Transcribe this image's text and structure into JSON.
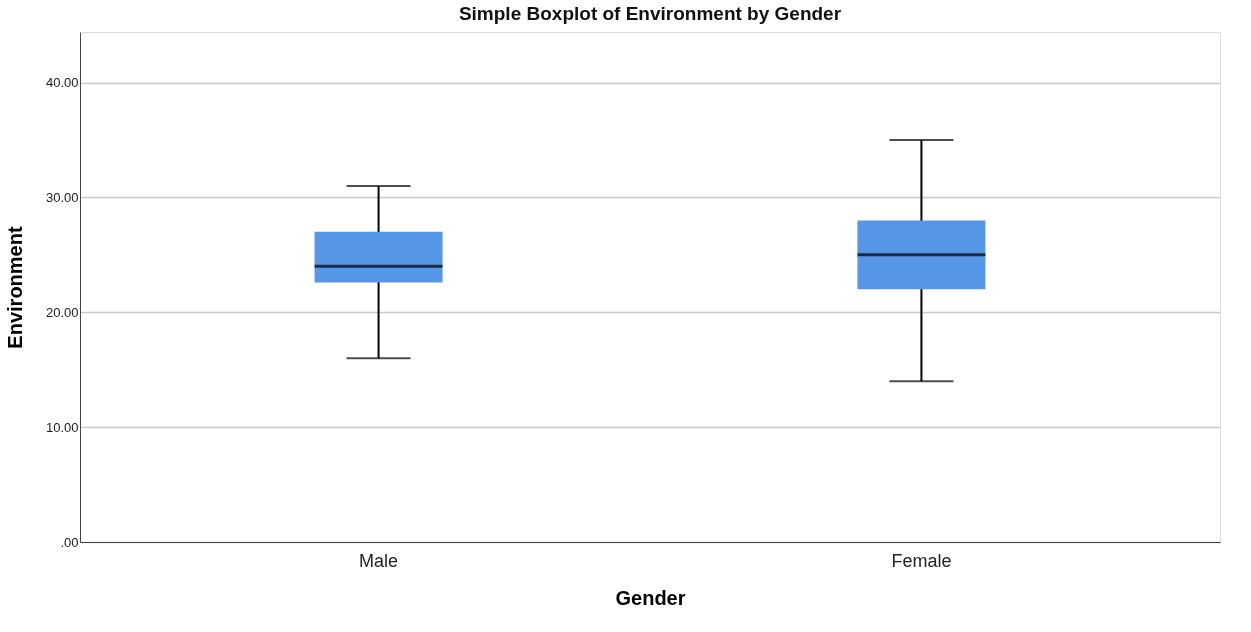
{
  "chart_data": {
    "type": "box",
    "title": "Simple Boxplot of Environment by Gender",
    "xlabel": "Gender",
    "ylabel": "Environment",
    "categories": [
      "Male",
      "Female"
    ],
    "boxes": [
      {
        "low": 16,
        "q1": 22.6,
        "median": 24,
        "q3": 27,
        "high": 31
      },
      {
        "low": 14,
        "q1": 22,
        "median": 25,
        "q3": 28,
        "high": 35
      }
    ],
    "color": "#5596e6",
    "ylim": [
      0,
      44.4
    ],
    "yticks": [
      {
        "value": 0,
        "label": ".00"
      },
      {
        "value": 10,
        "label": "10.00"
      },
      {
        "value": 20,
        "label": "20.00"
      },
      {
        "value": 30,
        "label": "30.00"
      },
      {
        "value": 40,
        "label": "40.00"
      }
    ],
    "grid": "y"
  }
}
